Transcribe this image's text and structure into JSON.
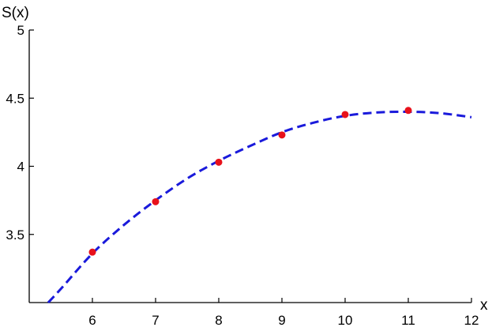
{
  "chart_data": {
    "type": "scatter",
    "xlabel": "x",
    "ylabel": "S(x)",
    "xlim": [
      5,
      12
    ],
    "ylim": [
      3,
      5
    ],
    "x_ticks": [
      "6",
      "7",
      "8",
      "9",
      "10",
      "11",
      "12"
    ],
    "y_ticks": [
      "3.5",
      "4",
      "4.5",
      "5"
    ],
    "grid": false,
    "points": {
      "color": "#e8111b",
      "x": [
        6,
        7,
        8,
        9,
        10,
        11
      ],
      "y": [
        3.37,
        3.74,
        4.03,
        4.23,
        4.38,
        4.41
      ]
    },
    "curve": {
      "style": "dashed",
      "color": "#1a1adb",
      "x": [
        5.3,
        5.5,
        6,
        6.5,
        7,
        7.5,
        8,
        8.5,
        9,
        9.5,
        10,
        10.5,
        11,
        11.5,
        12
      ],
      "y": [
        3.0,
        3.1,
        3.36,
        3.57,
        3.75,
        3.91,
        4.04,
        4.15,
        4.25,
        4.32,
        4.37,
        4.395,
        4.4,
        4.39,
        4.36
      ]
    }
  }
}
